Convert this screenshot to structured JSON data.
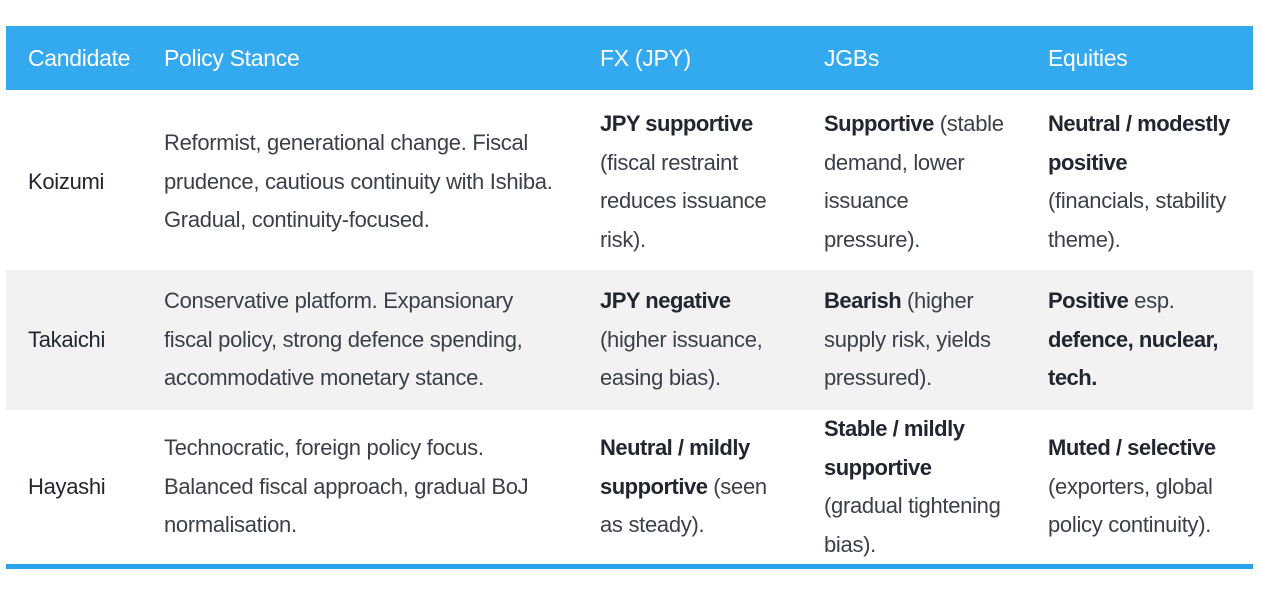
{
  "table": {
    "header_color": "#33a9ef",
    "alt_row_color": "#f2f2f2",
    "rule_color": "#2ba3ec",
    "columns": [
      "Candidate",
      "Policy Stance",
      "FX (JPY)",
      "JGBs",
      "Equities"
    ],
    "rows": [
      {
        "candidate": "Koizumi",
        "policy_stance": "Reformist, generational change. Fiscal prudence, cautious continuity with Ishiba. Gradual, continuity-focused.",
        "fx": {
          "bold": "JPY supportive",
          "rest": " (fiscal restraint reduces issuance risk)."
        },
        "jgbs": {
          "bold": "Supportive",
          "rest": " (stable demand, lower issuance pressure)."
        },
        "equities": {
          "bold": "Neutral / modestly positive",
          "rest": " (financials, stability theme)."
        }
      },
      {
        "candidate": "Takaichi",
        "policy_stance": "Conservative platform. Expansionary fiscal policy, strong defence spending, accommodative monetary stance.",
        "fx": {
          "bold": "JPY negative",
          "rest": " (higher issuance, easing bias)."
        },
        "jgbs": {
          "bold": "Bearish",
          "rest": " (higher supply risk, yields pressured)."
        },
        "equities": {
          "bold": "Positive",
          "rest": " esp. ",
          "bold2": "defence, nuclear, tech."
        }
      },
      {
        "candidate": "Hayashi",
        "policy_stance": "Technocratic, foreign policy focus. Balanced fiscal approach, gradual BoJ normalisation.",
        "fx": {
          "bold": "Neutral / mildly supportive",
          "rest": " (seen as steady)."
        },
        "jgbs": {
          "bold": "Stable / mildly supportive",
          "rest": " (gradual tightening bias)."
        },
        "equities": {
          "bold": "Muted / selective",
          "rest": " (exporters, global policy continuity)."
        }
      }
    ]
  }
}
